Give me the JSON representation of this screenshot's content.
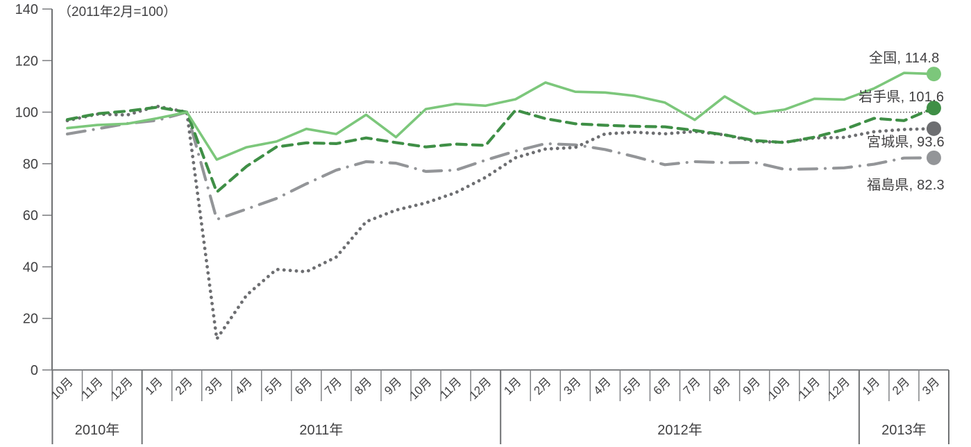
{
  "chart": {
    "note": "（2011年2月=100）"
  },
  "chart_data": {
    "type": "line",
    "title": "（2011年2月=100）",
    "ylim": [
      0,
      140
    ],
    "y_ticks": [
      0,
      20,
      40,
      60,
      80,
      100,
      120,
      140
    ],
    "reference_line": {
      "value": 100
    },
    "legend_position": "end-of-line-labels",
    "grid": "off",
    "categories": [
      "10月",
      "11月",
      "12月",
      "1月",
      "2月",
      "3月",
      "4月",
      "5月",
      "6月",
      "7月",
      "8月",
      "9月",
      "10月",
      "11月",
      "12月",
      "1月",
      "2月",
      "3月",
      "4月",
      "5月",
      "6月",
      "7月",
      "8月",
      "9月",
      "10月",
      "11月",
      "12月",
      "1月",
      "2月",
      "3月"
    ],
    "year_groups": [
      {
        "label": "2010年",
        "count": 3
      },
      {
        "label": "2011年",
        "count": 12
      },
      {
        "label": "2012年",
        "count": 12
      },
      {
        "label": "2013年",
        "count": 3
      }
    ],
    "series": [
      {
        "key": "zenkoku",
        "name": "全国",
        "end_value": 114.8,
        "value_label": "全国, 114.8",
        "color": "#7cc77b",
        "style": "solid",
        "values": [
          93.8,
          95.0,
          95.5,
          97.6,
          100.0,
          81.6,
          86.4,
          88.6,
          93.5,
          91.5,
          99.0,
          90.3,
          101.2,
          103.2,
          102.5,
          105.0,
          111.5,
          107.9,
          107.6,
          106.3,
          103.7,
          97.0,
          106.1,
          99.4,
          101.0,
          105.2,
          104.9,
          109.2,
          115.2,
          114.8
        ]
      },
      {
        "key": "iwate",
        "name": "岩手県",
        "end_value": 101.6,
        "value_label": "岩手県, 101.6",
        "color": "#3f8f46",
        "style": "dashed",
        "values": [
          97.1,
          99.4,
          100.4,
          101.9,
          100.0,
          69.0,
          79.0,
          86.5,
          88.1,
          87.8,
          90.0,
          88.2,
          86.5,
          87.6,
          87.1,
          100.8,
          97.5,
          95.5,
          94.9,
          94.5,
          94.3,
          92.9,
          91.2,
          89.0,
          88.2,
          90.3,
          93.3,
          97.6,
          96.7,
          101.6
        ]
      },
      {
        "key": "miyagi",
        "name": "宮城県",
        "end_value": 93.6,
        "value_label": "宮城県, 93.6",
        "color": "#6d6e71",
        "style": "dotted",
        "values": [
          96.7,
          99.2,
          98.9,
          102.3,
          100.0,
          12.0,
          29.0,
          39.0,
          38.1,
          43.8,
          57.5,
          62.0,
          64.8,
          68.8,
          74.7,
          82.3,
          85.7,
          86.3,
          91.6,
          92.2,
          91.6,
          92.5,
          91.2,
          88.6,
          88.3,
          90.0,
          90.2,
          92.4,
          93.3,
          93.6
        ]
      },
      {
        "key": "fukushima",
        "name": "福島県",
        "end_value": 82.3,
        "value_label": "福島県, 82.3",
        "color": "#939598",
        "style": "dash-dot",
        "values": [
          91.5,
          93.5,
          95.6,
          96.8,
          100.0,
          58.4,
          62.4,
          66.5,
          72.2,
          77.5,
          80.8,
          80.2,
          77.0,
          77.5,
          81.4,
          84.9,
          87.8,
          87.3,
          85.5,
          82.7,
          79.6,
          80.8,
          80.4,
          80.5,
          77.8,
          78.0,
          78.4,
          79.8,
          82.2,
          82.3
        ]
      }
    ]
  }
}
